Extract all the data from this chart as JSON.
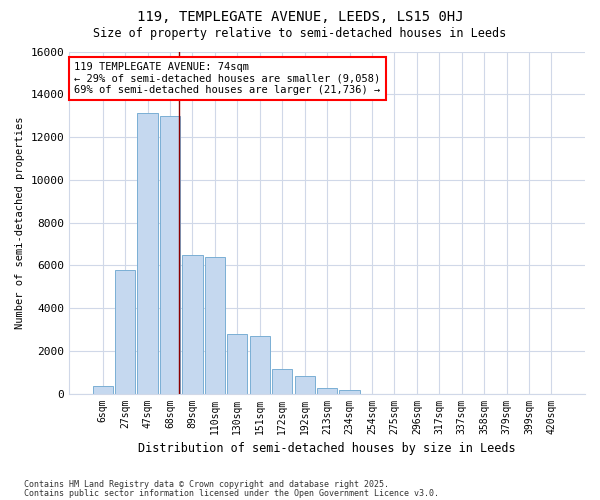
{
  "title1": "119, TEMPLEGATE AVENUE, LEEDS, LS15 0HJ",
  "title2": "Size of property relative to semi-detached houses in Leeds",
  "xlabel": "Distribution of semi-detached houses by size in Leeds",
  "ylabel": "Number of semi-detached properties",
  "categories": [
    "6sqm",
    "27sqm",
    "47sqm",
    "68sqm",
    "89sqm",
    "110sqm",
    "130sqm",
    "151sqm",
    "172sqm",
    "192sqm",
    "213sqm",
    "234sqm",
    "254sqm",
    "275sqm",
    "296sqm",
    "317sqm",
    "337sqm",
    "358sqm",
    "379sqm",
    "399sqm",
    "420sqm"
  ],
  "values": [
    350,
    5800,
    13100,
    13000,
    6500,
    6400,
    2800,
    2700,
    1150,
    800,
    250,
    150,
    0,
    0,
    0,
    0,
    0,
    0,
    0,
    0,
    0
  ],
  "bar_color": "#c5d8ef",
  "bar_edge_color": "#7aafd4",
  "annotation_text": "119 TEMPLEGATE AVENUE: 74sqm\n← 29% of semi-detached houses are smaller (9,058)\n69% of semi-detached houses are larger (21,736) →",
  "ylim": [
    0,
    16000
  ],
  "yticks": [
    0,
    2000,
    4000,
    6000,
    8000,
    10000,
    12000,
    14000,
    16000
  ],
  "footer1": "Contains HM Land Registry data © Crown copyright and database right 2025.",
  "footer2": "Contains public sector information licensed under the Open Government Licence v3.0.",
  "bg_color": "#ffffff",
  "plot_bg_color": "#ffffff",
  "grid_color": "#d0d8e8",
  "red_line_x": 3.38
}
